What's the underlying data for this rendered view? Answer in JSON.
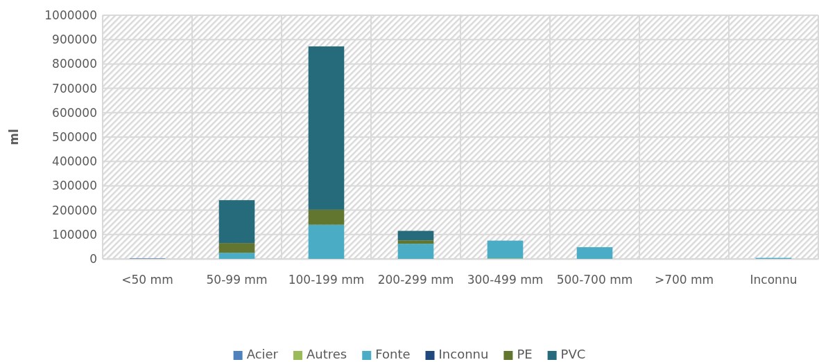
{
  "chart_data": {
    "type": "bar",
    "stacked": true,
    "ylabel": "ml",
    "categories": [
      "<50 mm",
      "50-99 mm",
      "100-199 mm",
      "200-299 mm",
      "300-499 mm",
      "500-700 mm",
      ">700 mm",
      "Inconnu"
    ],
    "series": [
      {
        "name": "Acier",
        "color": "#4f81bd",
        "values": [
          2000,
          0,
          0,
          0,
          0,
          0,
          0,
          0
        ]
      },
      {
        "name": "Autres",
        "color": "#9bbb59",
        "values": [
          0,
          0,
          0,
          0,
          2000,
          0,
          0,
          0
        ]
      },
      {
        "name": "Fonte",
        "color": "#4bacc6",
        "values": [
          0,
          25000,
          140000,
          62000,
          73000,
          48000,
          0,
          4000
        ]
      },
      {
        "name": "Inconnu",
        "color": "#1f497d",
        "values": [
          0,
          0,
          0,
          0,
          0,
          0,
          0,
          0
        ]
      },
      {
        "name": "PE",
        "color": "#62762f",
        "values": [
          0,
          40000,
          62000,
          14000,
          0,
          0,
          0,
          0
        ]
      },
      {
        "name": "PVC",
        "color": "#256b7b",
        "values": [
          0,
          176000,
          670000,
          39000,
          0,
          0,
          0,
          0
        ]
      }
    ],
    "ylim": [
      0,
      1000000
    ],
    "yticks": [
      0,
      100000,
      200000,
      300000,
      400000,
      500000,
      600000,
      700000,
      800000,
      900000,
      1000000
    ],
    "grid": true,
    "legend": "bottom"
  }
}
